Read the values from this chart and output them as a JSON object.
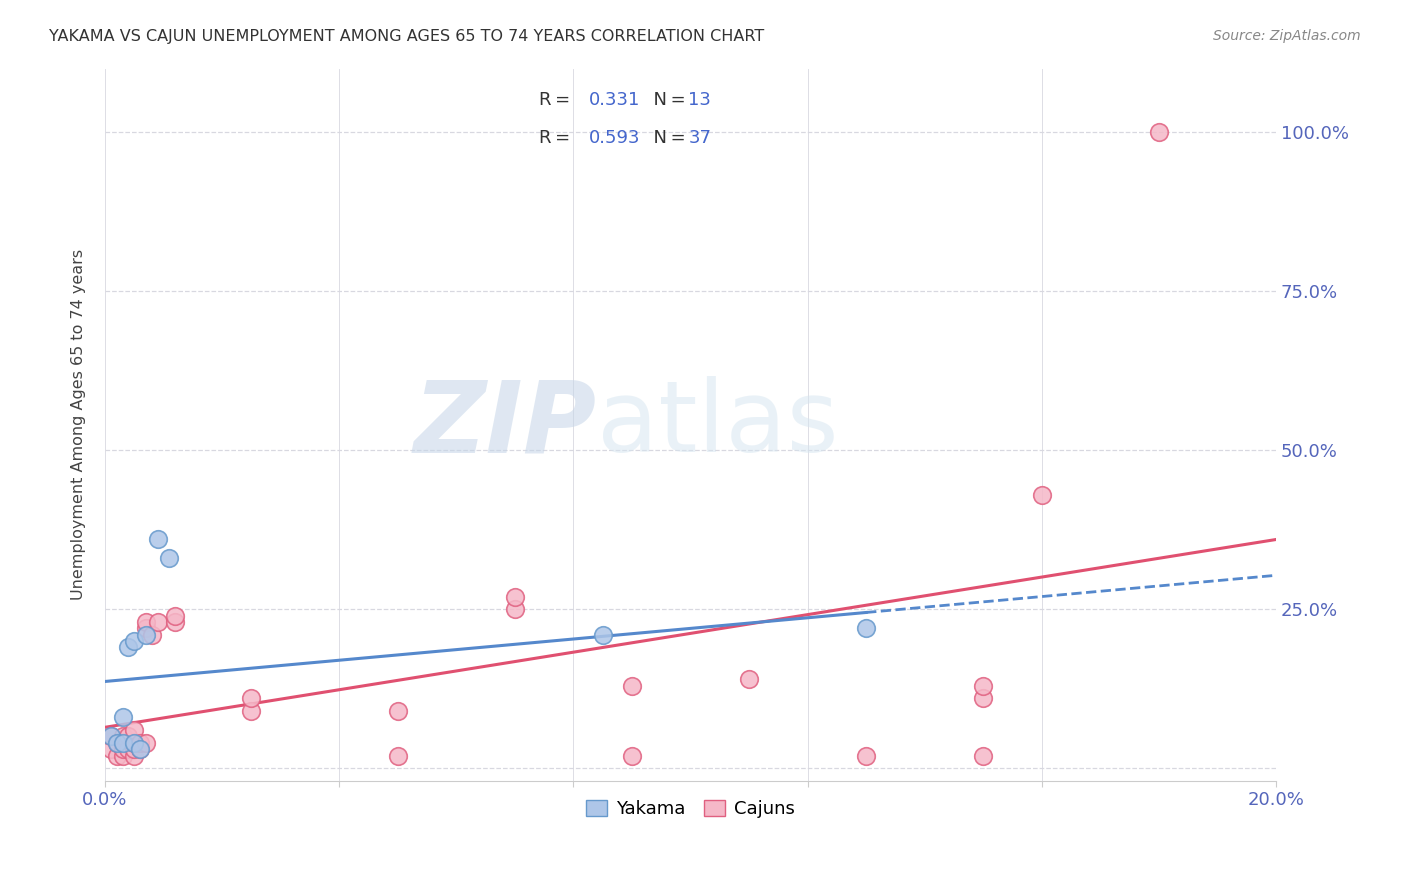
{
  "title": "YAKAMA VS CAJUN UNEMPLOYMENT AMONG AGES 65 TO 74 YEARS CORRELATION CHART",
  "source": "Source: ZipAtlas.com",
  "ylabel": "Unemployment Among Ages 65 to 74 years",
  "watermark_zip": "ZIP",
  "watermark_atlas": "atlas",
  "yakama_R": 0.331,
  "yakama_N": 13,
  "cajun_R": 0.593,
  "cajun_N": 37,
  "yakama_color": "#aec6e8",
  "cajun_color": "#f5b8c8",
  "yakama_edge_color": "#6699cc",
  "cajun_edge_color": "#e06080",
  "yakama_line_color": "#5588cc",
  "cajun_line_color": "#e05070",
  "bg_color": "#ffffff",
  "grid_color": "#d8d8e0",
  "title_color": "#333333",
  "source_color": "#888888",
  "axis_tick_color": "#5566bb",
  "legend_border_color": "#ccccdd",
  "blue_text_color": "#4466cc",
  "yakama_x": [
    0.001,
    0.002,
    0.003,
    0.003,
    0.004,
    0.005,
    0.005,
    0.006,
    0.007,
    0.009,
    0.011,
    0.085,
    0.13
  ],
  "yakama_y": [
    0.05,
    0.04,
    0.04,
    0.08,
    0.19,
    0.2,
    0.04,
    0.03,
    0.21,
    0.36,
    0.33,
    0.21,
    0.22
  ],
  "cajun_x": [
    0.001,
    0.001,
    0.002,
    0.002,
    0.003,
    0.003,
    0.003,
    0.004,
    0.004,
    0.005,
    0.005,
    0.005,
    0.005,
    0.006,
    0.006,
    0.007,
    0.007,
    0.007,
    0.008,
    0.009,
    0.012,
    0.012,
    0.025,
    0.025,
    0.05,
    0.05,
    0.07,
    0.07,
    0.09,
    0.09,
    0.11,
    0.13,
    0.15,
    0.15,
    0.15,
    0.16,
    0.18
  ],
  "cajun_y": [
    0.03,
    0.05,
    0.02,
    0.04,
    0.02,
    0.03,
    0.05,
    0.03,
    0.05,
    0.02,
    0.03,
    0.04,
    0.06,
    0.03,
    0.04,
    0.04,
    0.22,
    0.23,
    0.21,
    0.23,
    0.23,
    0.24,
    0.09,
    0.11,
    0.09,
    0.02,
    0.25,
    0.27,
    0.02,
    0.13,
    0.14,
    0.02,
    0.02,
    0.11,
    0.13,
    0.43,
    1.0
  ],
  "xmin": 0.0,
  "xmax": 0.2,
  "ymin": -0.02,
  "ymax": 1.1,
  "yticks": [
    0.0,
    0.25,
    0.5,
    0.75,
    1.0
  ],
  "ytick_labels": [
    "",
    "25.0%",
    "50.0%",
    "75.0%",
    "100.0%"
  ],
  "xtick_positions": [
    0.0,
    0.04,
    0.08,
    0.12,
    0.16,
    0.2
  ],
  "xtick_labels": [
    "0.0%",
    "",
    "",
    "",
    "",
    "20.0%"
  ]
}
